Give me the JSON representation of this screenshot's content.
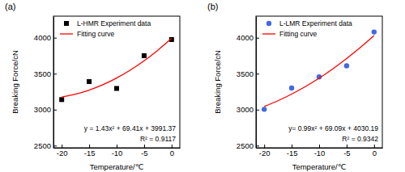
{
  "chart_data": [
    {
      "type": "scatter",
      "title": "(a)",
      "x_label": "Temperature/℃",
      "y_label": "Breaking Force/cN",
      "xlim": [
        -21.5,
        1.5
      ],
      "xticks": [
        -20,
        -15,
        -10,
        -5,
        0
      ],
      "ylim": [
        2470,
        4300
      ],
      "yticks": [
        2500,
        3000,
        3500,
        4000
      ],
      "grid": false,
      "legend": "upper left",
      "annotations": [
        "y = 1.43x² + 69.41x + 3991.37",
        "R² = 0.9117"
      ],
      "series": [
        {
          "name": "L-HMR Experiment data",
          "type": "scatter",
          "marker": "square",
          "color": "#000000",
          "x": [
            -20,
            -15,
            -10,
            -5,
            0
          ],
          "values": [
            3140,
            3390,
            3295,
            3750,
            3975
          ]
        },
        {
          "name": "Fitting curve",
          "type": "line",
          "line_style": "solid",
          "color": "#ff0000",
          "x": [
            -20,
            -17.5,
            -15,
            -12.5,
            -10,
            -7.5,
            -5,
            -2.5,
            0
          ],
          "values": [
            3175,
            3215,
            3272,
            3347,
            3440,
            3551,
            3680,
            3827,
            3991
          ]
        }
      ]
    },
    {
      "type": "scatter",
      "title": "(b)",
      "x_label": "Temperature/℃",
      "y_label": "Breaking Force/cN",
      "xlim": [
        -21.5,
        1.5
      ],
      "xticks": [
        -20,
        -15,
        -10,
        -5,
        0
      ],
      "ylim": [
        2470,
        4300
      ],
      "yticks": [
        2500,
        3000,
        3500,
        4000
      ],
      "grid": false,
      "legend": "upper left",
      "annotations": [
        "y= 0.99x² + 69.09x + 4030.19",
        "R² = 0.9342"
      ],
      "series": [
        {
          "name": "L-LMR Experiment data",
          "type": "scatter",
          "marker": "circle",
          "color": "#4169e1",
          "x": [
            -20,
            -15,
            -10,
            -5,
            0
          ],
          "values": [
            3005,
            3300,
            3455,
            3610,
            4080
          ]
        },
        {
          "name": "Fitting curve",
          "type": "line",
          "line_style": "solid",
          "color": "#ff0000",
          "x": [
            -20,
            -17.5,
            -15,
            -12.5,
            -10,
            -7.5,
            -5,
            -2.5,
            0
          ],
          "values": [
            3044,
            3124,
            3217,
            3321,
            3438,
            3568,
            3710,
            3864,
            4030
          ]
        }
      ]
    }
  ]
}
